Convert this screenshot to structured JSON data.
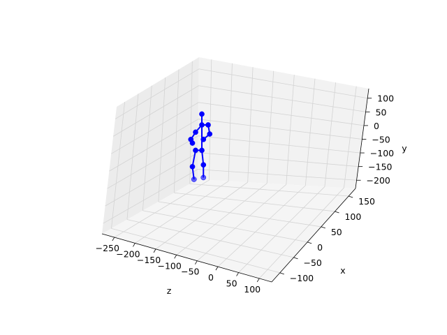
{
  "chart_data": {
    "type": "scatter",
    "subtype": "3d-skeleton",
    "axes": {
      "z": {
        "label": "z",
        "ticks": [
          -250,
          -200,
          -150,
          -100,
          -50,
          0,
          50,
          100
        ],
        "tick_labels": [
          "−250",
          "−200",
          "−150",
          "−100",
          "−50",
          "0",
          "50",
          "100"
        ]
      },
      "x": {
        "label": "x",
        "ticks": [
          -100,
          -50,
          0,
          50,
          100,
          150
        ],
        "tick_labels": [
          "−100",
          "−50",
          "0",
          "50",
          "100",
          "150"
        ]
      },
      "y": {
        "label": "y",
        "ticks": [
          -200,
          -150,
          -100,
          -50,
          0,
          50,
          100
        ],
        "tick_labels": [
          "−200",
          "−150",
          "−100",
          "−50",
          "0",
          "50",
          "100"
        ]
      }
    },
    "grid": true,
    "pane_color": "#f2f2f2",
    "series": [
      {
        "color": "#0000ff",
        "joints": [
          {
            "id": "head",
            "x": 0,
            "y": 55,
            "z": 0
          },
          {
            "id": "neck",
            "x": 0,
            "y": 25,
            "z": 0
          },
          {
            "id": "right-shoulder",
            "x": 20,
            "y": 25,
            "z": 0
          },
          {
            "id": "right-elbow",
            "x": 25,
            "y": 0,
            "z": 0
          },
          {
            "id": "right-wrist",
            "x": 5,
            "y": -15,
            "z": 0
          },
          {
            "id": "left-shoulder",
            "x": -20,
            "y": 5,
            "z": 0
          },
          {
            "id": "left-elbow",
            "x": -35,
            "y": -15,
            "z": 0
          },
          {
            "id": "left-wrist",
            "x": -30,
            "y": -25,
            "z": 0
          },
          {
            "id": "right-hip",
            "x": 0,
            "y": -45,
            "z": 0
          },
          {
            "id": "right-knee",
            "x": 5,
            "y": -85,
            "z": 0
          },
          {
            "id": "right-ankle",
            "x": 5,
            "y": -120,
            "z": 0
          },
          {
            "id": "left-hip",
            "x": -20,
            "y": -45,
            "z": 0
          },
          {
            "id": "left-knee",
            "x": -30,
            "y": -90,
            "z": 0
          },
          {
            "id": "left-ankle",
            "x": -25,
            "y": -125,
            "z": 0
          }
        ],
        "bones": [
          [
            "head",
            "neck"
          ],
          [
            "neck",
            "right-shoulder"
          ],
          [
            "right-shoulder",
            "right-elbow"
          ],
          [
            "right-elbow",
            "right-wrist"
          ],
          [
            "neck",
            "left-shoulder"
          ],
          [
            "left-shoulder",
            "left-elbow"
          ],
          [
            "left-elbow",
            "left-wrist"
          ],
          [
            "neck",
            "right-hip"
          ],
          [
            "right-hip",
            "right-knee"
          ],
          [
            "right-knee",
            "right-ankle"
          ],
          [
            "right-hip",
            "left-hip"
          ],
          [
            "left-hip",
            "left-knee"
          ],
          [
            "left-knee",
            "left-ankle"
          ]
        ]
      }
    ]
  }
}
